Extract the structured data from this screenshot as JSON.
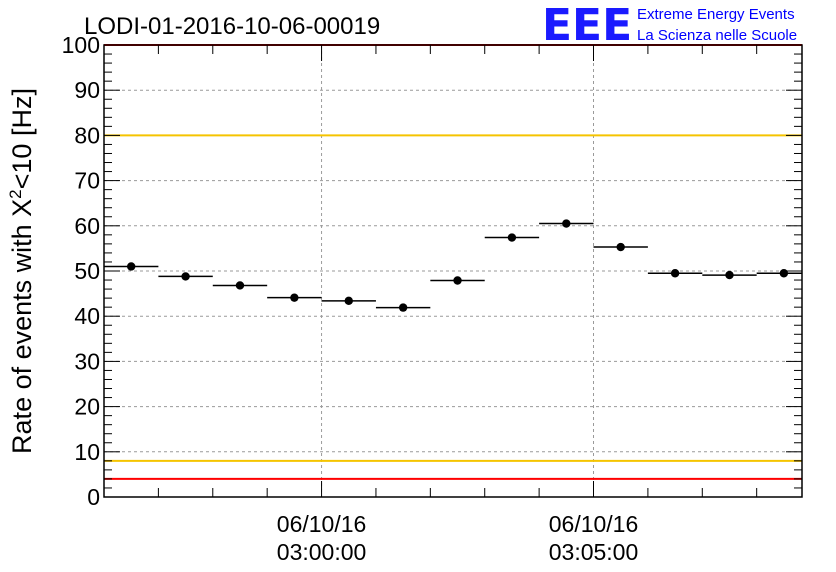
{
  "title": "LODI-01-2016-10-06-00019",
  "logo": {
    "letters": "EEE",
    "line1": "Extreme Energy Events",
    "line2": "La Scienza nelle Scuole",
    "color": "#0000ff"
  },
  "chart_data": {
    "type": "scatter",
    "title": "LODI-01-2016-10-06-00019",
    "xlabel": "",
    "ylabel": "Rate of events with X²<10 [Hz]",
    "ylabel_parts": {
      "pre": "Rate of events with X",
      "sup": "2",
      "post": "<10 [Hz]"
    },
    "ylim": [
      0,
      100
    ],
    "y_ticks": [
      "0",
      "10",
      "20",
      "30",
      "40",
      "50",
      "60",
      "70",
      "80",
      "90",
      "100"
    ],
    "xlim": [
      "2016-10-06 02:56:00",
      "2016-10-06 03:08:50"
    ],
    "x_ticks": [
      {
        "t": "2016-10-06 03:00:00",
        "date": "06/10/16",
        "time": "03:00:00"
      },
      {
        "t": "2016-10-06 03:05:00",
        "date": "06/10/16",
        "time": "03:05:00"
      }
    ],
    "grid": true,
    "bin_width_seconds": 60,
    "series": [
      {
        "x": [
          "2016-10-06 02:56:30",
          "2016-10-06 02:57:30",
          "2016-10-06 02:58:30",
          "2016-10-06 02:59:30",
          "2016-10-06 03:00:30",
          "2016-10-06 03:01:30",
          "2016-10-06 03:02:30",
          "2016-10-06 03:03:30",
          "2016-10-06 03:04:30",
          "2016-10-06 03:05:30",
          "2016-10-06 03:06:30",
          "2016-10-06 03:07:30",
          "2016-10-06 03:08:30"
        ],
        "values": [
          51,
          48.8,
          46.8,
          44.1,
          43.4,
          41.9,
          47.9,
          57.4,
          60.5,
          55.3,
          49.5,
          49.1,
          49.5
        ],
        "color": "#000000"
      }
    ],
    "reference_lines": [
      {
        "y": 80,
        "color": "#f5c400"
      },
      {
        "y": 8,
        "color": "#f5c400"
      },
      {
        "y": 100,
        "color": "#ff0000"
      },
      {
        "y": 4,
        "color": "#ff0000"
      }
    ]
  }
}
